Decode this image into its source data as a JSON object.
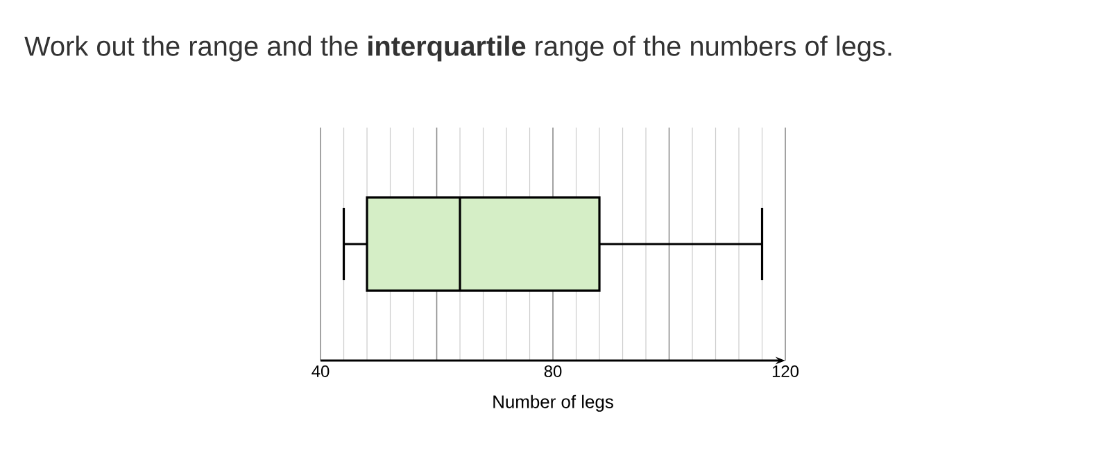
{
  "chart_data": {
    "type": "box",
    "title": "Work out the range and the **interquartile** range of the numbers of legs.",
    "xlabel": "Number of legs",
    "orientation": "horizontal",
    "categories": [
      null
    ],
    "color": "#d5eec6",
    "boxes": [
      {
        "low": 44,
        "q1": 48,
        "median": 64,
        "q3": 88,
        "high": 116
      }
    ],
    "xlim": [
      40,
      120
    ],
    "xticks": [
      40,
      {
        "value": 60,
        "label": null
      },
      80,
      {
        "value": 100,
        "label": null
      },
      120
    ],
    "grid": true,
    "tick_labels": "x"
  }
}
